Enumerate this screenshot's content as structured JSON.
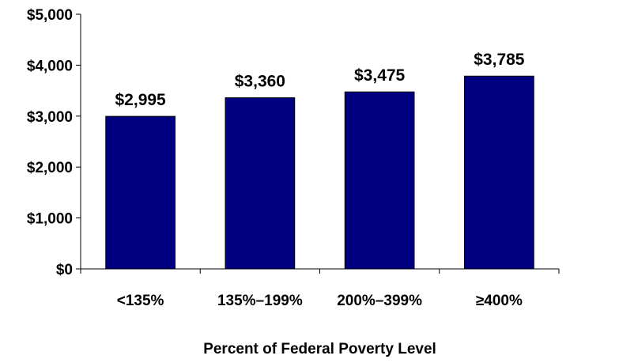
{
  "chart_data": {
    "type": "bar",
    "categories": [
      "<135%",
      "135%–199%",
      "200%–399%",
      "≥400%"
    ],
    "values": [
      2995,
      3360,
      3475,
      3785
    ],
    "value_labels": [
      "$2,995",
      "$3,360",
      "$3,475",
      "$3,785"
    ],
    "title": "",
    "xlabel": "Percent of Federal Poverty Level",
    "ylabel": "",
    "ylim": [
      0,
      5000
    ],
    "yticks": [
      0,
      1000,
      2000,
      3000,
      4000,
      5000
    ],
    "ytick_labels": [
      "$0",
      "$1,000",
      "$2,000",
      "$3,000",
      "$4,000",
      "$5,000"
    ],
    "grid": false,
    "legend": "none",
    "bar_color": "#000080"
  }
}
